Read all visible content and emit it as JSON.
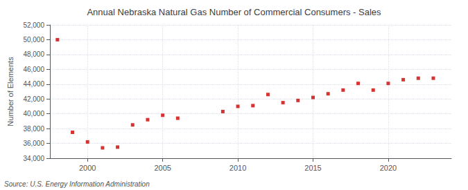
{
  "chart_data": {
    "type": "scatter",
    "title": "Annual Nebraska Natural Gas Number of Commercial Consumers - Sales",
    "ylabel": "Number of Elements",
    "annotation": "Source: U.S. Energy Information Administration",
    "x": [
      1998,
      1999,
      2000,
      2001,
      2002,
      2003,
      2004,
      2005,
      2006,
      2009,
      2010,
      2011,
      2012,
      2013,
      2014,
      2015,
      2016,
      2017,
      2018,
      2019,
      2020,
      2021,
      2022,
      2023
    ],
    "values": [
      50000,
      37500,
      36200,
      35400,
      35500,
      38500,
      39200,
      39800,
      39400,
      40300,
      41000,
      41100,
      42600,
      41500,
      41800,
      42200,
      42700,
      43200,
      44100,
      43200,
      44100,
      44600,
      44800,
      44800
    ],
    "color": "#cc0000",
    "marker": "square",
    "xlim": [
      1997.5,
      2024.2
    ],
    "xticks": [
      2000,
      2005,
      2010,
      2015,
      2020
    ],
    "ylim": [
      34000,
      52000
    ],
    "yticks": [
      {
        "value": 34000,
        "label": "34,000"
      },
      {
        "value": 36000,
        "label": "36,000"
      },
      {
        "value": 38000,
        "label": "38,000"
      },
      {
        "value": 40000,
        "label": "40,000"
      },
      {
        "value": 42000,
        "label": "42,000"
      },
      {
        "value": 44000,
        "label": "44,000"
      },
      {
        "value": 46000,
        "label": "46,000"
      },
      {
        "value": 48000,
        "label": "48,000"
      },
      {
        "value": 50000,
        "label": "50,000"
      },
      {
        "value": 52000,
        "label": "52,000"
      }
    ],
    "grid": true
  }
}
